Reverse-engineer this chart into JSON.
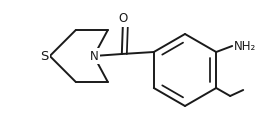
{
  "bg_color": "#ffffff",
  "line_color": "#1a1a1a",
  "line_width": 1.4,
  "figsize": [
    2.74,
    1.34
  ],
  "dpi": 100,
  "thio_S_label": "S",
  "thio_N_label": "N",
  "NH2_label": "NH₂",
  "O_label": "O",
  "font_size_atoms": 8.5
}
